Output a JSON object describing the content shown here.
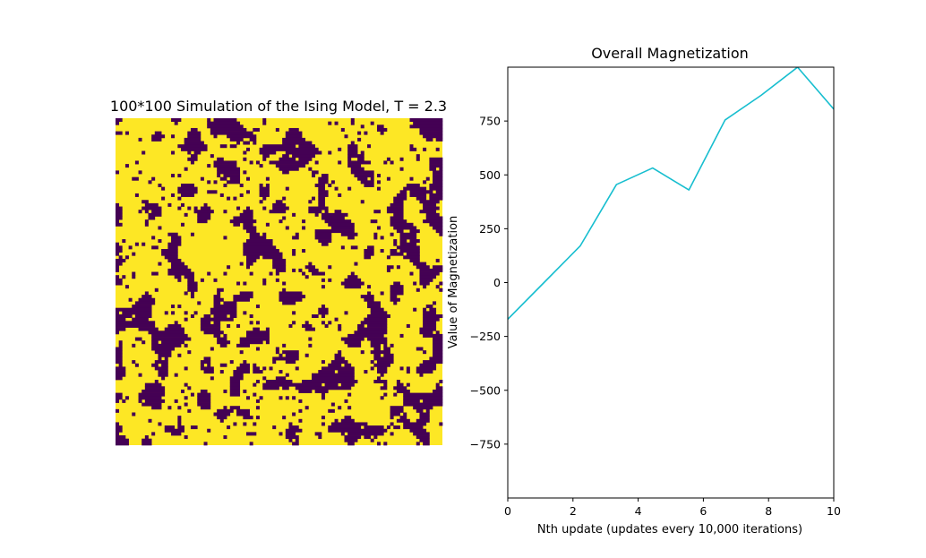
{
  "chart_data": [
    {
      "type": "heatmap",
      "title": "100*100 Simulation of the Ising Model, T = 2.3",
      "grid_size": [
        100,
        100
      ],
      "spin_colors": {
        "up": "#fde725",
        "down": "#440154"
      },
      "seed": 7,
      "axes_visible": false
    },
    {
      "type": "line",
      "title": "Overall Magnetization",
      "xlabel": "Nth update (updates every 10,000 iterations)",
      "ylabel": "Value of Magnetization",
      "xlim": [
        0,
        10
      ],
      "ylim": [
        -1000,
        1000
      ],
      "xticks": [
        0,
        2,
        4,
        6,
        8,
        10
      ],
      "yticks": [
        -750,
        -500,
        -250,
        0,
        250,
        500,
        750
      ],
      "series": [
        {
          "color": "#17becf",
          "x": [
            0,
            1.111,
            2.222,
            3.333,
            4.444,
            5.556,
            6.667,
            7.778,
            8.889,
            10
          ],
          "y": [
            -170,
            0,
            170,
            455,
            532,
            430,
            755,
            870,
            1000,
            805
          ]
        }
      ],
      "grid": false
    }
  ]
}
